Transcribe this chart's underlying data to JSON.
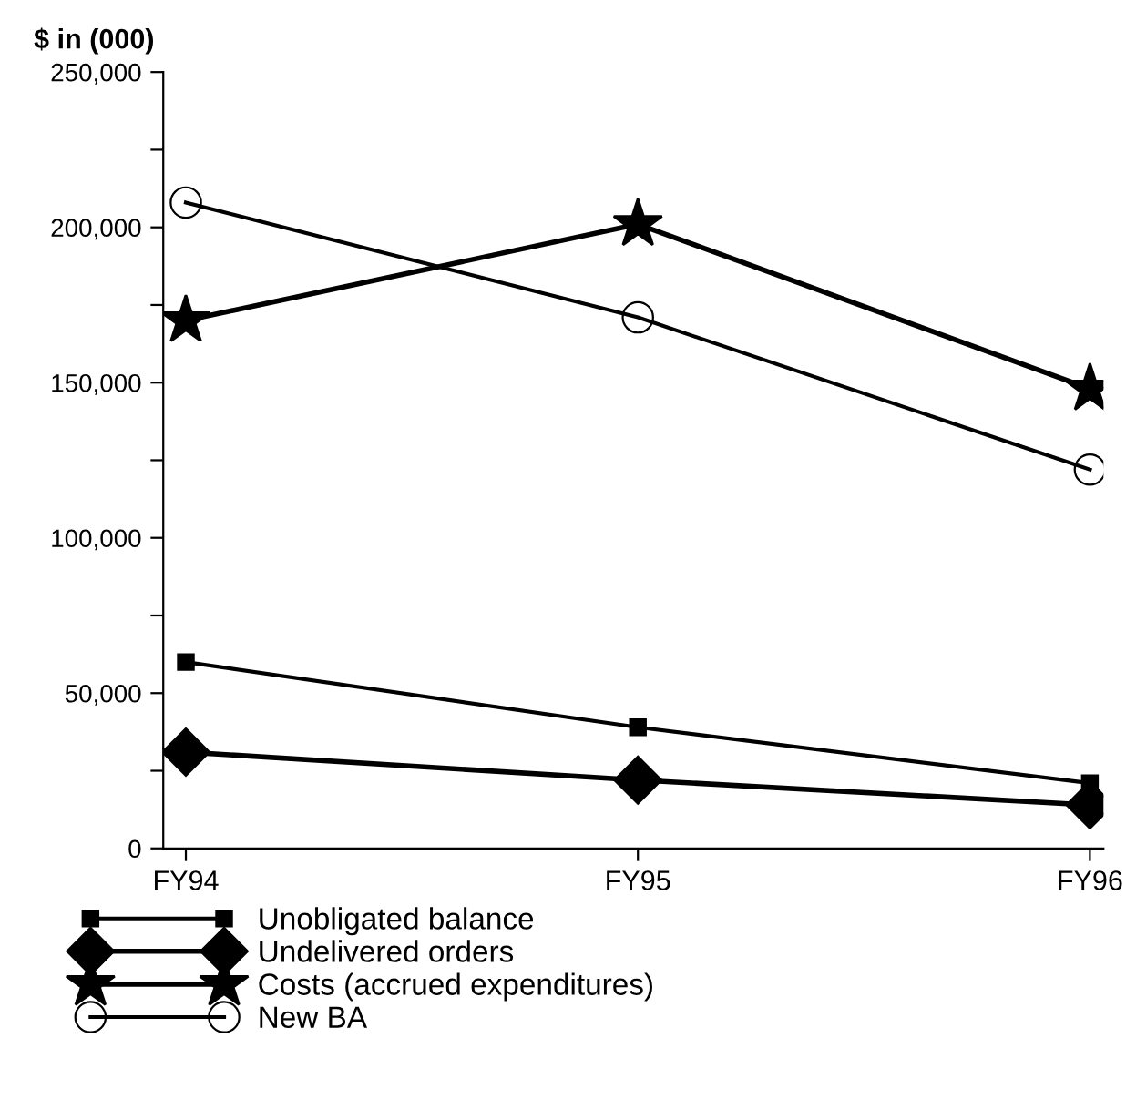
{
  "chart_data": {
    "type": "line",
    "ylabel": "$ in (000)",
    "categories": [
      "FY94",
      "FY95",
      "FY96"
    ],
    "series": [
      {
        "name": "Unobligated balance",
        "color": "#000000",
        "marker": "square",
        "values": [
          60000,
          39000,
          21000
        ]
      },
      {
        "name": "Undelivered orders",
        "color": "#000000",
        "marker": "diamond",
        "values": [
          31000,
          22000,
          14000
        ]
      },
      {
        "name": "Costs (accrued expenditures)",
        "color": "#000000",
        "marker": "star",
        "values": [
          170000,
          201000,
          148000
        ]
      },
      {
        "name": "New BA",
        "color": "#000000",
        "marker": "circle",
        "values": [
          208000,
          171000,
          122000
        ]
      }
    ],
    "ylim": [
      0,
      250000
    ],
    "yticks": [
      {
        "value": 0,
        "label": "0"
      },
      {
        "value": 25000,
        "label": null
      },
      {
        "value": 50000,
        "label": "50,000"
      },
      {
        "value": 75000,
        "label": null
      },
      {
        "value": 100000,
        "label": "100,000"
      },
      {
        "value": 125000,
        "label": null
      },
      {
        "value": 150000,
        "label": "150,000"
      },
      {
        "value": 175000,
        "label": null
      },
      {
        "value": 200000,
        "label": "200,000"
      },
      {
        "value": 225000,
        "label": null
      },
      {
        "value": 250000,
        "label": "250,000"
      }
    ],
    "grid": false,
    "legend": "bottom left"
  }
}
